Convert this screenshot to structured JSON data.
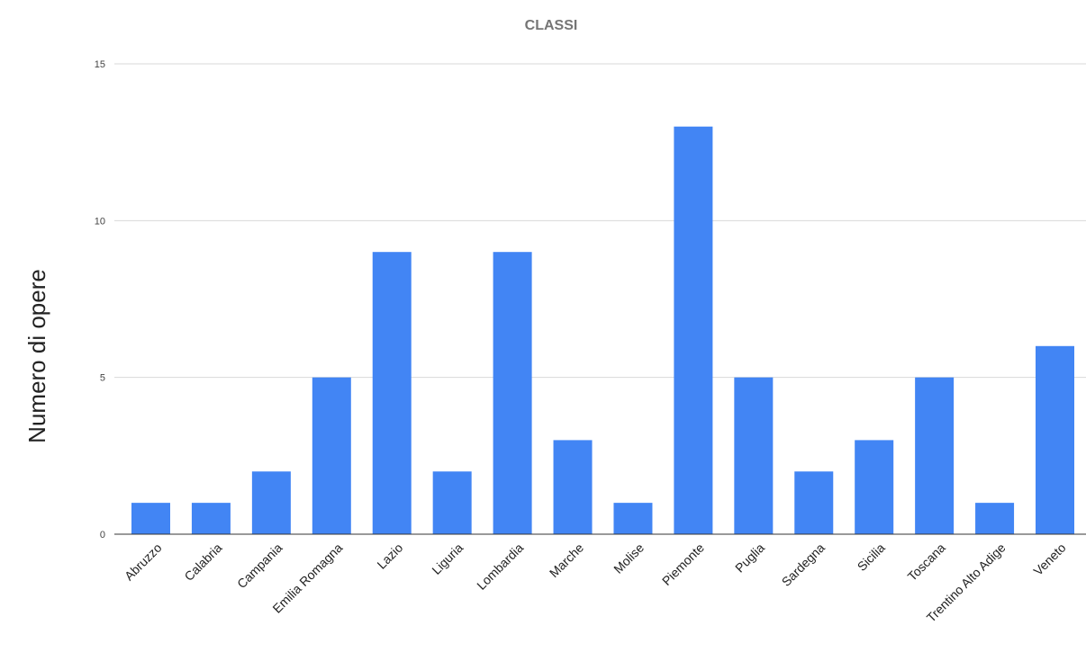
{
  "chart_data": {
    "type": "bar",
    "title": "CLASSI",
    "xlabel": "",
    "ylabel": "Numero di opere",
    "ylim": [
      0,
      15
    ],
    "yticks": [
      0,
      5,
      10,
      15
    ],
    "grid": true,
    "legend": "none",
    "bar_color": "#4285F4",
    "categories": [
      "Abruzzo",
      "Calabria",
      "Campania",
      "Emilia Romagna",
      "Lazio",
      "Liguria",
      "Lombardia",
      "Marche",
      "Molise",
      "Piemonte",
      "Puglia",
      "Sardegna",
      "Sicilia",
      "Toscana",
      "Trentino Alto Adige",
      "Veneto"
    ],
    "values": [
      1,
      1,
      2,
      5,
      9,
      2,
      9,
      3,
      1,
      13,
      5,
      2,
      3,
      5,
      1,
      6
    ]
  }
}
